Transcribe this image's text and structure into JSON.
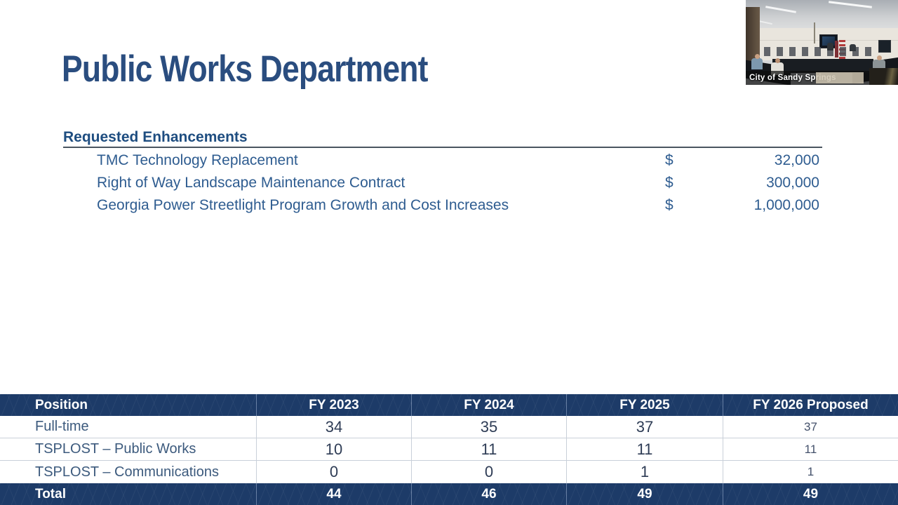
{
  "slide": {
    "title": "Public Works Department",
    "section_heading": "Requested Enhancements",
    "enhancements": [
      {
        "label": "TMC Technology Replacement",
        "currency": "$",
        "amount": "32,000"
      },
      {
        "label": "Right of Way Landscape Maintenance Contract",
        "currency": "$",
        "amount": "300,000"
      },
      {
        "label": "Georgia Power Streetlight Program Growth and Cost Increases",
        "currency": "$",
        "amount": "1,000,000"
      }
    ]
  },
  "staff_table": {
    "columns": [
      "Position",
      "FY 2023",
      "FY 2024",
      "FY 2025",
      "FY 2026 Proposed"
    ],
    "rows": [
      {
        "position": "Full-time",
        "values": [
          "34",
          "35",
          "37",
          "37"
        ]
      },
      {
        "position": "TSPLOST – Public Works",
        "values": [
          "10",
          "11",
          "11",
          "11"
        ]
      },
      {
        "position": "TSPLOST – Communications",
        "values": [
          "0",
          "0",
          "1",
          "1"
        ]
      }
    ],
    "total_row": {
      "position": "Total",
      "values": [
        "44",
        "46",
        "49",
        "49"
      ]
    }
  },
  "video_overlay": {
    "caption": "City of Sandy Springs"
  },
  "colors": {
    "title_blue": "#2a4d7f",
    "body_blue": "#2e5c90",
    "table_navy": "#1d3b68",
    "number_navy": "#2e3c55"
  }
}
